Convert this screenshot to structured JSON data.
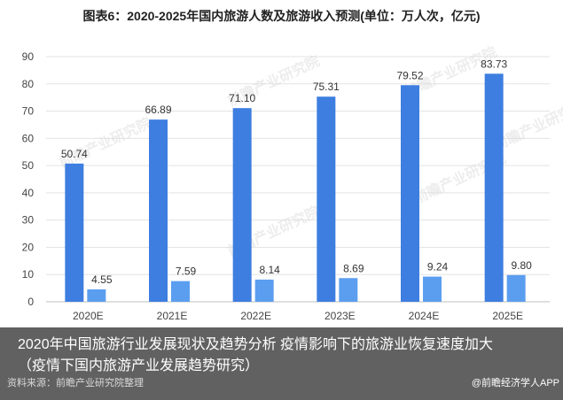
{
  "chart_data": {
    "type": "bar",
    "title": "图表6：2020-2025年国内旅游人数及旅游收入预测(单位：万人次，亿元)",
    "categories": [
      "2020E",
      "2021E",
      "2022E",
      "2023E",
      "2024E",
      "2025E"
    ],
    "series": [
      {
        "values": [
          50.74,
          66.89,
          71.1,
          75.31,
          79.52,
          83.73
        ]
      },
      {
        "values": [
          4.55,
          7.59,
          8.14,
          8.69,
          9.24,
          9.8
        ]
      }
    ],
    "ylim": [
      0,
      90
    ],
    "yticks": [
      0,
      10,
      20,
      30,
      40,
      50,
      60,
      70,
      80,
      90
    ],
    "value_labels": [
      [
        "50.74",
        "66.89",
        "71.10",
        "75.31",
        "79.52",
        "83.73"
      ],
      [
        "4.55",
        "7.59",
        "8.14",
        "8.69",
        "9.24",
        "9.80"
      ]
    ],
    "grid": true,
    "legend": "none",
    "colors": [
      "#3d7ee0",
      "#5b9ef0"
    ]
  },
  "overlay": {
    "caption": "2020年中国旅游行业发展现状及趋势分析 疫情影响下的旅游业恢复速度加大（疫情下国内旅游产业发展趋势研究）",
    "source": "资料来源：前瞻产业研究院整理",
    "credit": "@前瞻经济学人APP"
  },
  "watermark": {
    "text": "前瞻产业研究院"
  }
}
